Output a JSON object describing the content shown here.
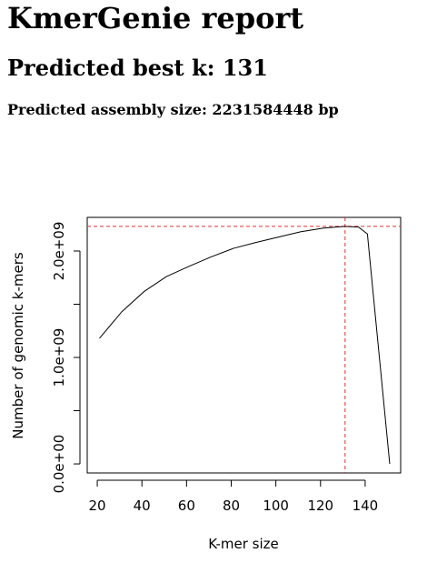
{
  "report": {
    "title": "KmerGenie report",
    "best_k_text": "Predicted best k: 131",
    "size_text": "Predicted assembly size: 2231584448 bp"
  },
  "chart_data": {
    "type": "line",
    "xlabel": "K-mer size",
    "ylabel": "Number of genomic k-mers",
    "x": [
      21,
      31,
      41,
      51,
      61,
      71,
      81,
      91,
      101,
      111,
      121,
      131,
      137,
      141,
      151
    ],
    "values": [
      1180000000,
      1430000000,
      1620000000,
      1760000000,
      1855000000,
      1945000000,
      2025000000,
      2080000000,
      2130000000,
      2180000000,
      2215000000,
      2231584448,
      2225000000,
      2160000000,
      0
    ],
    "color": "#000000",
    "xlim": [
      15.5,
      155.9
    ],
    "ylim": [
      -85000000,
      2316000000
    ],
    "xticks": [
      20,
      40,
      60,
      80,
      100,
      120,
      140
    ],
    "yticks": [
      {
        "value": 0,
        "label": "0.0e+00"
      },
      {
        "value": 500000000,
        "label": null
      },
      {
        "value": 1000000000,
        "label": "1.0e+09"
      },
      {
        "value": 1500000000,
        "label": null
      },
      {
        "value": 2000000000,
        "label": "2.0e+09"
      }
    ],
    "hline": 2231584448,
    "vline": 131,
    "ref_color": "#e03030"
  }
}
